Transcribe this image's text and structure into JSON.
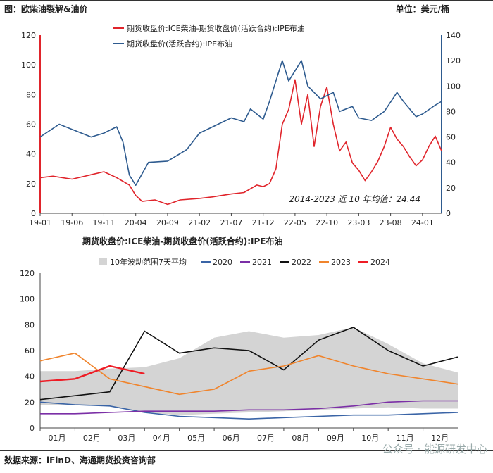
{
  "header": {
    "title": "图：欧柴油裂解&油价",
    "unit": "单位：美元/桶"
  },
  "footer": {
    "source": "数据来源：iFinD、海通期货投资咨询部",
    "watermark": "公众号 · 能源研发中心"
  },
  "colors": {
    "red": "#e0242b",
    "blue": "#2e5b8f",
    "gray": "#d4d4d4",
    "y2020": "#3a64a6",
    "y2021": "#7b2fa6",
    "y2022": "#111111",
    "y2023": "#f0842c",
    "y2024": "#ee1c25"
  },
  "chart_data": [
    {
      "type": "line",
      "title": "",
      "legend": [
        "期货收盘价:ICE柴油-期货收盘价(活跃合约):IPE布油",
        "期货收盘价(活跃合约):IPE布油"
      ],
      "legend_position": "top-left",
      "x_ticks": [
        "19-01",
        "19-06",
        "19-11",
        "20-04",
        "20-09",
        "21-02",
        "21-07",
        "21-12",
        "22-05",
        "22-10",
        "23-03",
        "23-08",
        "24-01"
      ],
      "y_left": {
        "range": [
          0,
          120
        ],
        "ticks": [
          0,
          20,
          40,
          60,
          80,
          100,
          120
        ]
      },
      "y_right": {
        "range": [
          0,
          140
        ],
        "ticks": [
          0,
          20,
          40,
          60,
          80,
          100,
          120,
          140
        ]
      },
      "reference_line": {
        "value": 24.44,
        "label": "2014-2023 近 10 年均值：24.44",
        "style": "dashed"
      },
      "series": [
        {
          "name": "期货收盘价:ICE柴油-期货收盘价(活跃合约):IPE布油",
          "axis": "left",
          "color": "red",
          "points": [
            [
              "19-01",
              24
            ],
            [
              "19-03",
              25
            ],
            [
              "19-06",
              23
            ],
            [
              "19-09",
              26
            ],
            [
              "19-11",
              28
            ],
            [
              "20-01",
              24
            ],
            [
              "20-03",
              19
            ],
            [
              "20-04",
              12
            ],
            [
              "20-05",
              8
            ],
            [
              "20-07",
              9
            ],
            [
              "20-09",
              6
            ],
            [
              "20-11",
              9
            ],
            [
              "21-02",
              10
            ],
            [
              "21-04",
              11
            ],
            [
              "21-07",
              13
            ],
            [
              "21-09",
              14
            ],
            [
              "21-11",
              19
            ],
            [
              "21-12",
              18
            ],
            [
              "22-01",
              20
            ],
            [
              "22-02",
              30
            ],
            [
              "22-03",
              60
            ],
            [
              "22-04",
              70
            ],
            [
              "22-05",
              90
            ],
            [
              "22-06",
              60
            ],
            [
              "22-07",
              80
            ],
            [
              "22-08",
              45
            ],
            [
              "22-09",
              72
            ],
            [
              "22-10",
              85
            ],
            [
              "22-11",
              60
            ],
            [
              "22-12",
              42
            ],
            [
              "23-01",
              48
            ],
            [
              "23-02",
              34
            ],
            [
              "23-03",
              29
            ],
            [
              "23-04",
              22
            ],
            [
              "23-05",
              28
            ],
            [
              "23-06",
              35
            ],
            [
              "23-07",
              45
            ],
            [
              "23-08",
              58
            ],
            [
              "23-09",
              50
            ],
            [
              "23-10",
              45
            ],
            [
              "23-11",
              38
            ],
            [
              "23-12",
              32
            ],
            [
              "24-01",
              36
            ],
            [
              "24-02",
              45
            ],
            [
              "24-03",
              52
            ],
            [
              "24-04",
              42
            ]
          ]
        },
        {
          "name": "期货收盘价(活跃合约):IPE布油",
          "axis": "right",
          "color": "blue",
          "points": [
            [
              "19-01",
              60
            ],
            [
              "19-04",
              70
            ],
            [
              "19-06",
              66
            ],
            [
              "19-09",
              60
            ],
            [
              "19-11",
              63
            ],
            [
              "20-01",
              68
            ],
            [
              "20-02",
              56
            ],
            [
              "20-03",
              30
            ],
            [
              "20-04",
              22
            ],
            [
              "20-06",
              40
            ],
            [
              "20-09",
              41
            ],
            [
              "20-12",
              50
            ],
            [
              "21-02",
              63
            ],
            [
              "21-07",
              75
            ],
            [
              "21-09",
              72
            ],
            [
              "21-10",
              82
            ],
            [
              "21-12",
              74
            ],
            [
              "22-01",
              88
            ],
            [
              "22-03",
              120
            ],
            [
              "22-04",
              104
            ],
            [
              "22-06",
              120
            ],
            [
              "22-07",
              100
            ],
            [
              "22-09",
              90
            ],
            [
              "22-11",
              95
            ],
            [
              "22-12",
              80
            ],
            [
              "23-02",
              84
            ],
            [
              "23-03",
              75
            ],
            [
              "23-05",
              73
            ],
            [
              "23-07",
              80
            ],
            [
              "23-09",
              95
            ],
            [
              "23-10",
              88
            ],
            [
              "23-12",
              76
            ],
            [
              "24-01",
              78
            ],
            [
              "24-03",
              85
            ],
            [
              "24-04",
              88
            ]
          ]
        }
      ]
    },
    {
      "type": "line",
      "title": "期货收盘价:ICE柴油-期货收盘价(活跃合约):IPE布油",
      "legend": [
        "10年波动范围7天平均",
        "2020",
        "2021",
        "2022",
        "2023",
        "2024"
      ],
      "legend_position": "top",
      "x_ticks": [
        "01月",
        "02月",
        "03月",
        "04月",
        "05月",
        "06月",
        "07月",
        "08月",
        "09月",
        "10月",
        "11月",
        "12月"
      ],
      "y_axis": {
        "range": [
          0,
          120
        ],
        "ticks": [
          0,
          20,
          40,
          60,
          80,
          100,
          120
        ]
      },
      "band": {
        "name": "10年波动范围7天平均",
        "upper": [
          44,
          44,
          46,
          47,
          54,
          70,
          75,
          70,
          72,
          78,
          65,
          50,
          43
        ],
        "lower": [
          18,
          18,
          17,
          12,
          10,
          11,
          12,
          13,
          14,
          15,
          16,
          15,
          15
        ]
      },
      "series": [
        {
          "name": "2020",
          "color": "y2020",
          "values": [
            20,
            18,
            17,
            12,
            9,
            8,
            7,
            8,
            9,
            10,
            10,
            11,
            12
          ]
        },
        {
          "name": "2021",
          "color": "y2021",
          "values": [
            11,
            11,
            12,
            13,
            13,
            13,
            14,
            14,
            15,
            17,
            20,
            21,
            21
          ]
        },
        {
          "name": "2022",
          "color": "y2022",
          "values": [
            22,
            25,
            28,
            75,
            58,
            62,
            60,
            45,
            68,
            78,
            60,
            48,
            55
          ]
        },
        {
          "name": "2023",
          "color": "y2023",
          "values": [
            52,
            58,
            38,
            32,
            26,
            30,
            44,
            48,
            56,
            48,
            42,
            38,
            34
          ]
        },
        {
          "name": "2024",
          "color": "y2024",
          "values": [
            36,
            38,
            48,
            42
          ]
        }
      ]
    }
  ]
}
